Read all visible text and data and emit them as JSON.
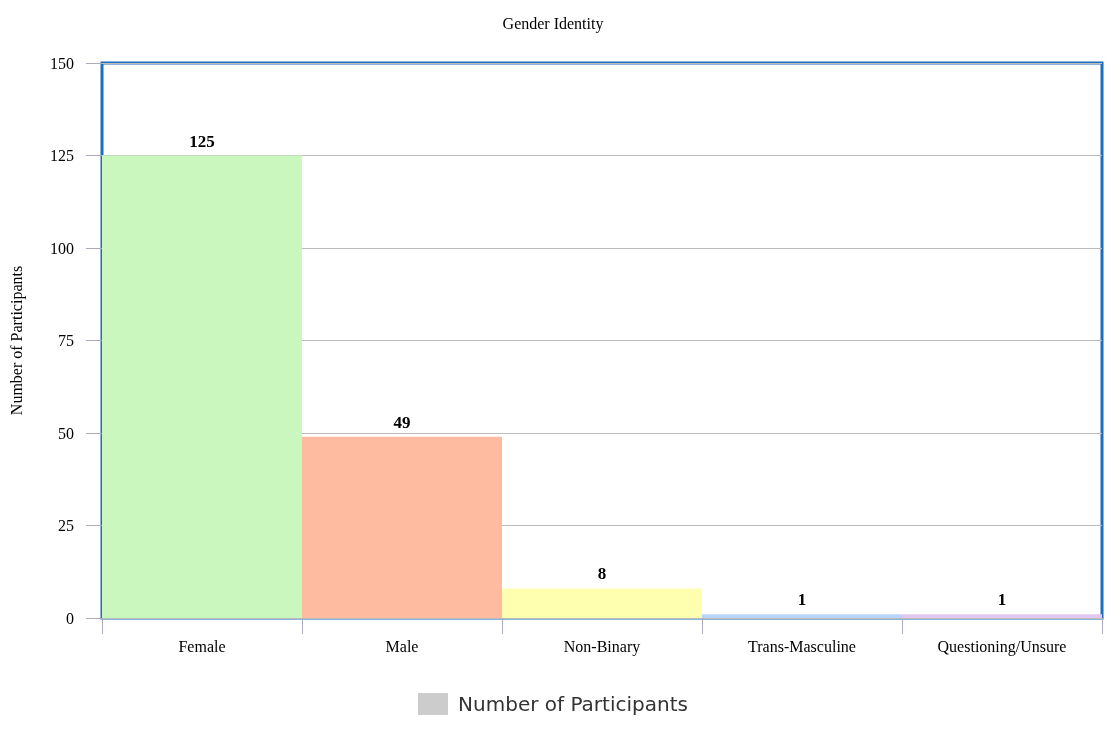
{
  "chart_data": {
    "type": "bar",
    "title": "Gender Identity",
    "ylabel": "Number of Participants",
    "categories": [
      "Female",
      "Male",
      "Non-Binary",
      "Trans-Masculine",
      "Questioning/Unsure"
    ],
    "series": [
      {
        "name": "Number of Participants",
        "color": "#cccccc",
        "colors": [
          "#c9f7bd",
          "#ffbba0",
          "#ffffb0",
          "#b8d4f8",
          "#e0c8f0"
        ],
        "values": [
          125,
          49,
          8,
          1,
          1
        ]
      }
    ],
    "ylim": [
      0,
      150
    ],
    "yticks": [
      0,
      25,
      50,
      75,
      100,
      125,
      150
    ],
    "grid": "y",
    "legend": "bottom",
    "data_labels": true
  }
}
